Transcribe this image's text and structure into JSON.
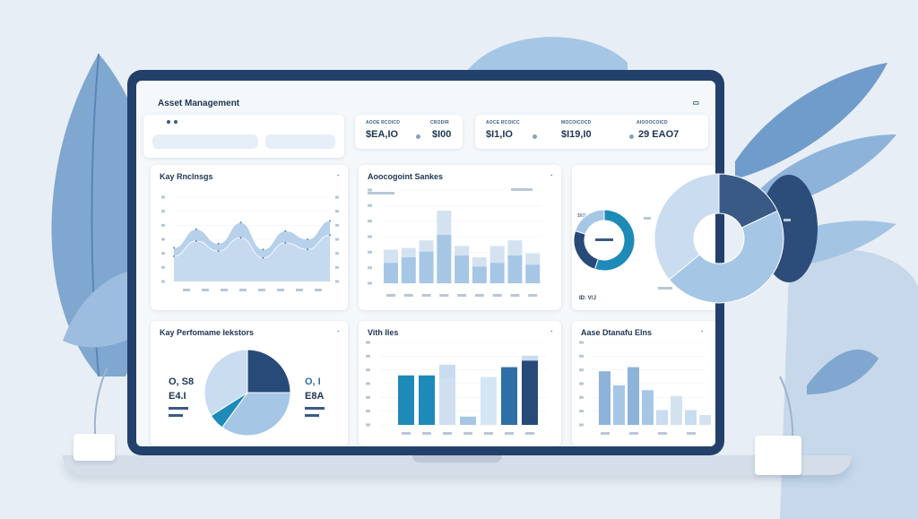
{
  "app": {
    "title": "Asset Management",
    "window_control": "▭"
  },
  "search": {
    "field1": "",
    "field2": ""
  },
  "stats": [
    {
      "label": "AOOE RCOICD",
      "value": "$EA,IO"
    },
    {
      "label": "CRODIR",
      "value": "$I00"
    },
    {
      "label": "AOCE RCOICC",
      "value": "$I1,IO"
    },
    {
      "label": "MOCOICOCD",
      "value": "$I19,I0"
    },
    {
      "label": "AIOOOCOICD",
      "value": "29 EAO7"
    }
  ],
  "panels": {
    "key_rankings": {
      "title": "Kay Rnclnsgs",
      "ctrl": "▪"
    },
    "asset_series": {
      "title": "Aoocogoint Sankes",
      "ctrl": "▪"
    },
    "donuts": {
      "label1": "$IIO",
      "label2": "ID: V!J"
    },
    "kpi": {
      "title": "Kay Perfomame Iekstors",
      "ctrl": "▪",
      "num1": "O, S8",
      "num2": "E4.I",
      "num3": "O, I",
      "num4": "E8A"
    },
    "vith": {
      "title": "Vith Iles",
      "ctrl": "▪"
    },
    "asset_dists": {
      "title": "Aase Dtanafu Elns",
      "ctrl": "▪"
    }
  },
  "chart_data": [
    {
      "type": "area",
      "title": "Kay Rnclnsgs",
      "series": [
        {
          "values": [
            40,
            62,
            45,
            70,
            38,
            60,
            50,
            72
          ]
        },
        {
          "values": [
            30,
            48,
            36,
            52,
            28,
            46,
            38,
            55
          ]
        }
      ],
      "ylim": [
        0,
        100
      ]
    },
    {
      "type": "bar",
      "title": "Aoocogoint Sankes",
      "series": [
        {
          "name": "lower",
          "values": [
            22,
            28,
            34,
            52,
            30,
            18,
            22,
            30,
            20
          ]
        },
        {
          "name": "upper",
          "values": [
            14,
            10,
            12,
            26,
            10,
            10,
            18,
            16,
            12
          ]
        }
      ],
      "ylim": [
        0,
        100
      ]
    },
    {
      "type": "pie",
      "title": "",
      "values": [
        55,
        25,
        20
      ]
    },
    {
      "type": "pie",
      "title": "",
      "values": [
        18,
        46,
        36
      ]
    },
    {
      "type": "pie",
      "title": "Kay Perfomame Iekstors",
      "values": [
        25,
        35,
        6,
        34
      ]
    },
    {
      "type": "bar",
      "title": "Vith Iles",
      "values": [
        60,
        60,
        55,
        10,
        58,
        70,
        78
      ],
      "stack": [
        0,
        0,
        18,
        0,
        0,
        0,
        6
      ],
      "ylim": [
        0,
        100
      ]
    },
    {
      "type": "bar",
      "title": "Aase Dtanafu Elns",
      "values": [
        65,
        48,
        70,
        42,
        18,
        35,
        18,
        12
      ],
      "ylim": [
        0,
        100
      ]
    }
  ]
}
